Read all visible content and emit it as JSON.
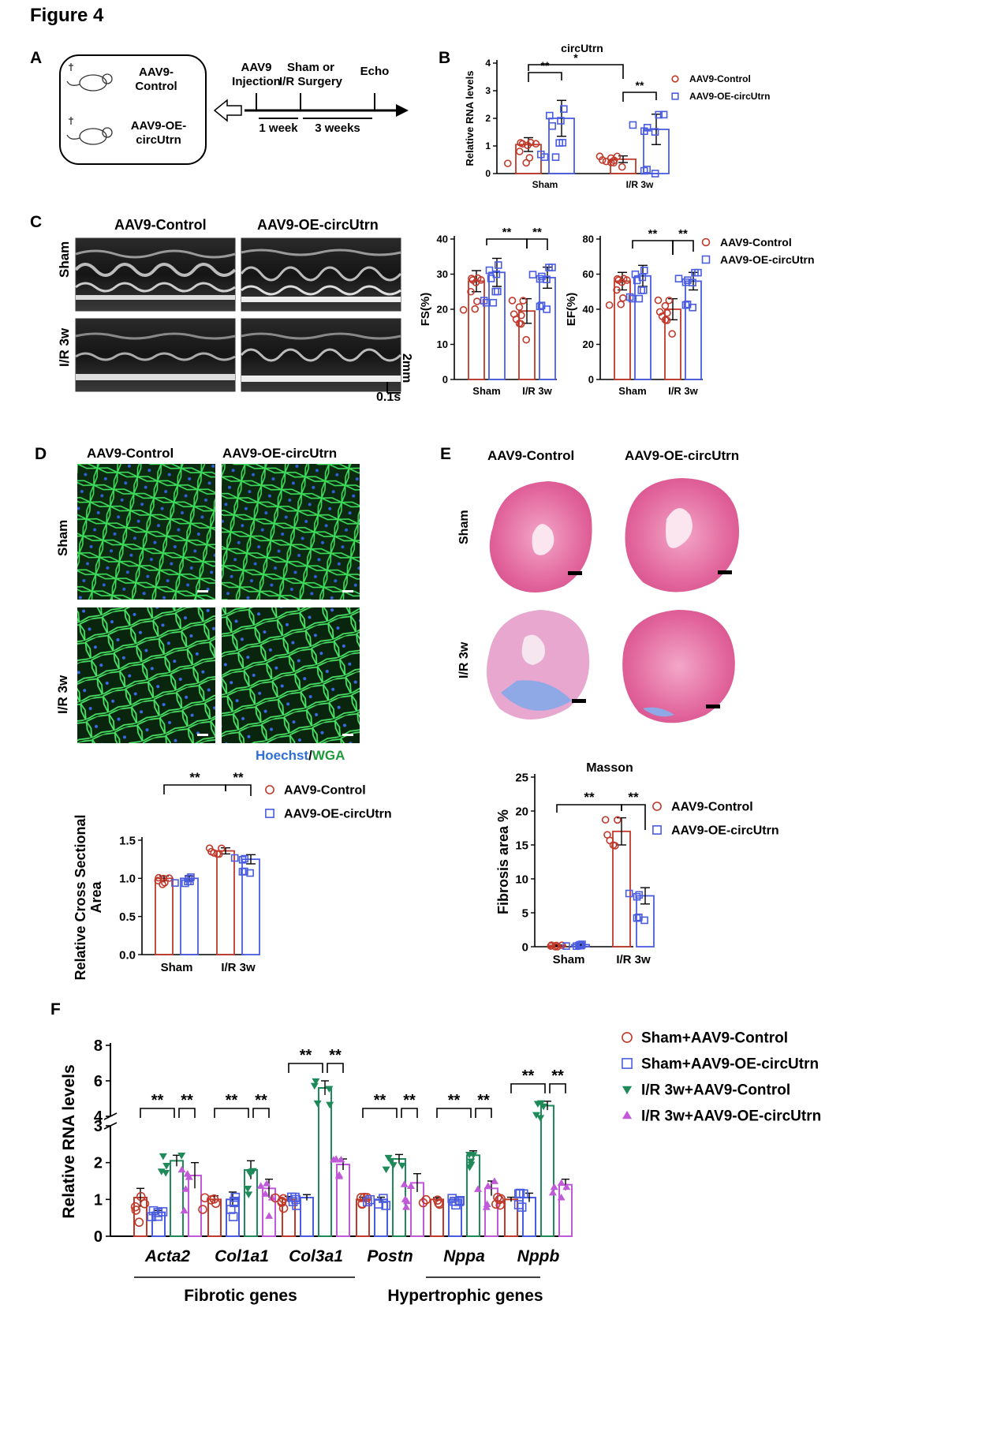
{
  "figure_title": "Figure 4",
  "panel_labels": {
    "a": "A",
    "b": "B",
    "c": "C",
    "d": "D",
    "e": "E",
    "f": "F"
  },
  "colors": {
    "control": "#c0392b",
    "oe": "#4a5ce0",
    "ir_control": "#1e8a5a",
    "ir_oe": "#c05ad8",
    "wga": "#3ddc5a",
    "hoechst": "#2f5fd9"
  },
  "panel_a": {
    "group1": "AAV9-\nControl",
    "group2": "AAV9-OE-\ncircUtrn",
    "step1": "AAV9\nInjection",
    "step2": "Sham or\nI/R Surgery",
    "step3": "Echo",
    "int1": "1 week",
    "int2": "3 weeks"
  },
  "panel_b": {
    "title": "circUtrn",
    "title_star": "*",
    "ylabel": "Relative RNA levels",
    "legend": [
      "AAV9-Control",
      "AAV9-OE-circUtrn"
    ],
    "sig": [
      "**",
      "**"
    ]
  },
  "panel_c": {
    "col_labels": [
      "AAV9-Control",
      "AAV9-OE-circUtrn"
    ],
    "row_labels": [
      "Sham",
      "I/R 3w"
    ],
    "scale_v": "2mm",
    "scale_h": "0.1s",
    "legend": [
      "AAV9-Control",
      "AAV9-OE-circUtrn"
    ],
    "sig": [
      "**",
      "**"
    ]
  },
  "panel_d": {
    "col_labels": [
      "AAV9-Control",
      "AAV9-OE-circUtrn"
    ],
    "row_labels": [
      "Sham",
      "I/R 3w"
    ],
    "stain_a": "Hoechst",
    "stain_sep": "/",
    "stain_b": "WGA",
    "legend": [
      "AAV9-Control",
      "AAV9-OE-circUtrn"
    ],
    "sig": [
      "**",
      "**"
    ]
  },
  "panel_e": {
    "col_labels": [
      "AAV9-Control",
      "AAV9-OE-circUtrn"
    ],
    "row_labels": [
      "Sham",
      "I/R 3w"
    ],
    "legend": [
      "AAV9-Control",
      "AAV9-OE-circUtrn"
    ],
    "sig": [
      "**",
      "**"
    ]
  },
  "panel_f": {
    "legend": [
      "Sham+AAV9-Control",
      "Sham+AAV9-OE-circUtrn",
      "I/R 3w+AAV9-Control",
      "I/R 3w+AAV9-OE-circUtrn"
    ],
    "group_fibrotic": "Fibrotic genes",
    "group_hypertrophic": "Hypertrophic genes",
    "sig": "**"
  },
  "chart_data": [
    {
      "id": "B",
      "type": "bar",
      "title": "circUtrn",
      "ylabel": "Relative RNA levels",
      "categories": [
        "Sham",
        "I/R 3w"
      ],
      "ylim": [
        0,
        4
      ],
      "yticks": [
        0,
        1,
        2,
        3,
        4
      ],
      "series": [
        {
          "name": "AAV9-Control",
          "values": [
            1.05,
            0.52
          ],
          "errors": [
            0.25,
            0.12
          ]
        },
        {
          "name": "AAV9-OE-circUtrn",
          "values": [
            2.0,
            1.6
          ],
          "errors": [
            0.65,
            0.55
          ]
        }
      ]
    },
    {
      "id": "C-FS",
      "type": "bar",
      "ylabel": "FS(%)",
      "categories": [
        "Sham",
        "I/R 3w"
      ],
      "ylim": [
        0,
        40
      ],
      "yticks": [
        0,
        10,
        20,
        30,
        40
      ],
      "series": [
        {
          "name": "AAV9-Control",
          "values": [
            28,
            19.5
          ],
          "errors": [
            3,
            3.5
          ]
        },
        {
          "name": "AAV9-OE-circUtrn",
          "values": [
            30.5,
            29
          ],
          "errors": [
            4,
            3
          ]
        }
      ]
    },
    {
      "id": "C-EF",
      "type": "bar",
      "ylabel": "EF(%)",
      "categories": [
        "Sham",
        "I/R 3w"
      ],
      "ylim": [
        0,
        80
      ],
      "yticks": [
        0,
        20,
        40,
        60,
        80
      ],
      "series": [
        {
          "name": "AAV9-Control",
          "values": [
            56,
            40
          ],
          "errors": [
            5,
            6
          ]
        },
        {
          "name": "AAV9-OE-circUtrn",
          "values": [
            59,
            56
          ],
          "errors": [
            6,
            5
          ]
        }
      ]
    },
    {
      "id": "D",
      "type": "bar",
      "ylabel": "Relative Cross Sectional Area",
      "categories": [
        "Sham",
        "I/R 3w"
      ],
      "ylim": [
        0,
        1.5
      ],
      "yticks": [
        0.0,
        0.5,
        1.0,
        1.5
      ],
      "ytick_labels": [
        "0.0",
        "0.5",
        "1.0",
        "1.5"
      ],
      "series": [
        {
          "name": "AAV9-Control",
          "values": [
            1.0,
            1.36
          ],
          "errors": [
            0.03,
            0.04
          ]
        },
        {
          "name": "AAV9-OE-circUtrn",
          "values": [
            1.0,
            1.25
          ],
          "errors": [
            0.03,
            0.06
          ]
        }
      ]
    },
    {
      "id": "E",
      "type": "bar",
      "title": "Masson",
      "ylabel": "Fibrosis area %",
      "categories": [
        "Sham",
        "I/R 3w"
      ],
      "ylim": [
        0,
        25
      ],
      "yticks": [
        0,
        5,
        10,
        15,
        20,
        25
      ],
      "series": [
        {
          "name": "AAV9-Control",
          "values": [
            0.2,
            17
          ],
          "errors": [
            0.1,
            2
          ]
        },
        {
          "name": "AAV9-OE-circUtrn",
          "values": [
            0.3,
            7.5
          ],
          "errors": [
            0.1,
            1.2
          ]
        }
      ]
    },
    {
      "id": "F",
      "type": "bar",
      "ylabel": "Relative RNA levels",
      "categories": [
        "Acta2",
        "Col1a1",
        "Col3a1",
        "Postn",
        "Nppa",
        "Nppb"
      ],
      "y_break": [
        3,
        4
      ],
      "yticks": [
        0,
        1,
        2,
        3,
        4,
        6,
        8
      ],
      "series": [
        {
          "name": "Sham+AAV9-Control",
          "values": [
            1.05,
            1.0,
            1.0,
            1.0,
            1.0,
            1.0
          ],
          "errors": [
            0.25,
            0.1,
            0.08,
            0.06,
            0.05,
            0.06
          ]
        },
        {
          "name": "Sham+AAV9-OE-circUtrn",
          "values": [
            0.65,
            1.0,
            1.05,
            1.0,
            1.0,
            1.05
          ],
          "errors": [
            0.05,
            0.2,
            0.08,
            0.06,
            0.05,
            0.12
          ]
        },
        {
          "name": "I/R 3w+AAV9-Control",
          "values": [
            2.05,
            1.8,
            5.6,
            2.1,
            2.2,
            4.6
          ],
          "errors": [
            0.15,
            0.25,
            0.4,
            0.12,
            0.12,
            0.25
          ]
        },
        {
          "name": "I/R 3w+AAV9-OE-circUtrn",
          "values": [
            1.65,
            1.3,
            1.95,
            1.45,
            1.3,
            1.4
          ],
          "errors": [
            0.35,
            0.25,
            0.15,
            0.25,
            0.2,
            0.15
          ]
        }
      ]
    }
  ]
}
